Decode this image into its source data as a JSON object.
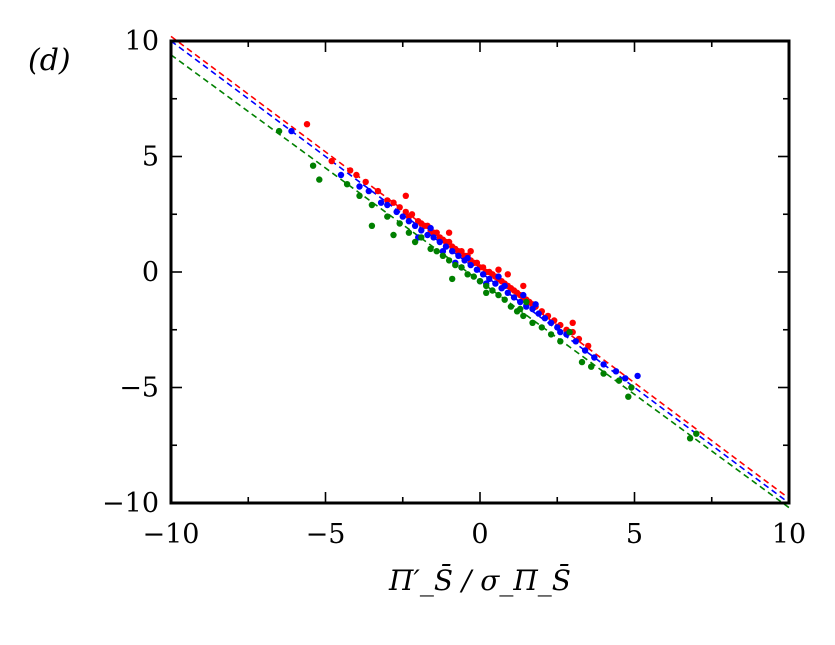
{
  "chart_data": {
    "type": "scatter",
    "panel_label": "(d)",
    "title": "",
    "xlabel": "Π′_S̄ / σ_Π_S̄",
    "ylabel": "",
    "xlim": [
      -10,
      10
    ],
    "ylim": [
      -10,
      10
    ],
    "xticks": [
      -10,
      -5,
      0,
      5,
      10
    ],
    "yticks": [
      -10,
      -5,
      0,
      5,
      10
    ],
    "xtick_labels": [
      "−10",
      "−5",
      "0",
      "5",
      "10"
    ],
    "ytick_labels": [
      "−10",
      "−5",
      "0",
      "5",
      "10"
    ],
    "grid": false,
    "legend": "none",
    "series": [
      {
        "color": "#ff0000",
        "fit_line": {
          "slope": -1.0,
          "intercept": 0.2
        },
        "points": [
          [
            -5.6,
            6.4
          ],
          [
            -4.8,
            4.8
          ],
          [
            -4.2,
            4.4
          ],
          [
            -4.0,
            4.2
          ],
          [
            -3.7,
            3.9
          ],
          [
            -3.3,
            3.5
          ],
          [
            -3.0,
            3.1
          ],
          [
            -2.8,
            3.0
          ],
          [
            -2.6,
            2.8
          ],
          [
            -2.4,
            2.6
          ],
          [
            -2.3,
            2.4
          ],
          [
            -2.2,
            2.5
          ],
          [
            -2.0,
            2.2
          ],
          [
            -1.9,
            2.1
          ],
          [
            -1.8,
            2.0
          ],
          [
            -1.7,
            2.0
          ],
          [
            -1.6,
            1.8
          ],
          [
            -1.5,
            1.7
          ],
          [
            -1.4,
            1.7
          ],
          [
            -1.3,
            1.5
          ],
          [
            -1.2,
            1.4
          ],
          [
            -1.1,
            1.3
          ],
          [
            -1.0,
            1.3
          ],
          [
            -0.9,
            1.1
          ],
          [
            -0.8,
            1.0
          ],
          [
            -0.7,
            0.9
          ],
          [
            -0.6,
            0.9
          ],
          [
            -0.5,
            0.7
          ],
          [
            -0.4,
            0.7
          ],
          [
            -0.3,
            0.5
          ],
          [
            -0.2,
            0.4
          ],
          [
            -0.1,
            0.4
          ],
          [
            0.0,
            0.2
          ],
          [
            0.1,
            0.2
          ],
          [
            0.2,
            0.0
          ],
          [
            0.3,
            0.0
          ],
          [
            0.4,
            -0.1
          ],
          [
            0.5,
            -0.2
          ],
          [
            0.6,
            -0.3
          ],
          [
            0.7,
            -0.4
          ],
          [
            0.8,
            -0.5
          ],
          [
            0.9,
            -0.6
          ],
          [
            1.0,
            -0.7
          ],
          [
            1.1,
            -0.8
          ],
          [
            1.2,
            -0.9
          ],
          [
            1.3,
            -1.0
          ],
          [
            1.4,
            -1.1
          ],
          [
            1.5,
            -1.2
          ],
          [
            1.6,
            -1.3
          ],
          [
            1.7,
            -1.4
          ],
          [
            1.8,
            -1.5
          ],
          [
            2.0,
            -1.7
          ],
          [
            2.2,
            -1.9
          ],
          [
            2.4,
            -2.1
          ],
          [
            2.6,
            -2.3
          ],
          [
            2.8,
            -2.5
          ],
          [
            3.0,
            -2.6
          ],
          [
            3.2,
            -2.9
          ],
          [
            3.5,
            -3.2
          ],
          [
            3.0,
            -2.2
          ],
          [
            -0.3,
            0.9
          ],
          [
            0.6,
            0.1
          ],
          [
            -1.0,
            1.7
          ],
          [
            1.4,
            -0.6
          ],
          [
            -2.4,
            3.3
          ],
          [
            0.9,
            -0.1
          ]
        ]
      },
      {
        "color": "#0000ff",
        "fit_line": {
          "slope": -1.0,
          "intercept": 0.0
        },
        "points": [
          [
            -6.1,
            6.1
          ],
          [
            -4.5,
            4.2
          ],
          [
            -3.9,
            3.7
          ],
          [
            -3.6,
            3.5
          ],
          [
            -3.2,
            3.0
          ],
          [
            -3.0,
            2.9
          ],
          [
            -2.7,
            2.6
          ],
          [
            -2.5,
            2.4
          ],
          [
            -2.3,
            2.2
          ],
          [
            -2.1,
            2.0
          ],
          [
            -1.9,
            1.8
          ],
          [
            -1.7,
            1.6
          ],
          [
            -1.5,
            1.5
          ],
          [
            -1.3,
            1.3
          ],
          [
            -1.1,
            1.1
          ],
          [
            -0.9,
            0.9
          ],
          [
            -0.7,
            0.7
          ],
          [
            -0.5,
            0.5
          ],
          [
            -0.3,
            0.3
          ],
          [
            -0.1,
            0.1
          ],
          [
            0.1,
            -0.1
          ],
          [
            0.3,
            -0.3
          ],
          [
            0.5,
            -0.5
          ],
          [
            0.7,
            -0.7
          ],
          [
            0.9,
            -0.9
          ],
          [
            1.1,
            -1.1
          ],
          [
            1.3,
            -1.3
          ],
          [
            1.5,
            -1.5
          ],
          [
            1.7,
            -1.6
          ],
          [
            1.9,
            -1.8
          ],
          [
            2.1,
            -2.0
          ],
          [
            2.3,
            -2.2
          ],
          [
            2.5,
            -2.4
          ],
          [
            2.8,
            -2.7
          ],
          [
            3.1,
            -3.0
          ],
          [
            3.4,
            -3.4
          ],
          [
            3.7,
            -3.7
          ],
          [
            4.0,
            -4.0
          ],
          [
            4.4,
            -4.3
          ],
          [
            4.7,
            -4.6
          ],
          [
            5.1,
            -4.5
          ],
          [
            -1.2,
            0.9
          ],
          [
            -0.6,
            0.2
          ],
          [
            0.2,
            -0.5
          ],
          [
            0.8,
            -0.6
          ],
          [
            1.4,
            -1.0
          ],
          [
            -2.0,
            1.5
          ],
          [
            -0.4,
            0.6
          ],
          [
            0.6,
            -0.2
          ],
          [
            1.8,
            -1.4
          ],
          [
            -1.6,
            1.9
          ],
          [
            2.6,
            -2.6
          ],
          [
            -0.8,
            0.4
          ],
          [
            0.0,
            -0.4
          ]
        ]
      },
      {
        "color": "#008000",
        "fit_line": {
          "slope": -0.98,
          "intercept": -0.4
        },
        "points": [
          [
            -6.5,
            6.1
          ],
          [
            -5.4,
            4.6
          ],
          [
            -5.2,
            4.0
          ],
          [
            -4.3,
            3.8
          ],
          [
            -3.9,
            3.3
          ],
          [
            -3.5,
            2.9
          ],
          [
            -3.0,
            2.4
          ],
          [
            -3.5,
            2.0
          ],
          [
            -2.6,
            2.1
          ],
          [
            -2.3,
            1.7
          ],
          [
            -2.1,
            1.3
          ],
          [
            -1.9,
            1.5
          ],
          [
            -1.6,
            1.0
          ],
          [
            -1.4,
            0.9
          ],
          [
            -1.2,
            0.7
          ],
          [
            -1.0,
            0.5
          ],
          [
            -0.8,
            0.3
          ],
          [
            -0.6,
            0.2
          ],
          [
            -0.4,
            -0.1
          ],
          [
            -0.2,
            -0.2
          ],
          [
            0.0,
            -0.4
          ],
          [
            0.2,
            -0.6
          ],
          [
            0.4,
            -0.8
          ],
          [
            0.6,
            -1.0
          ],
          [
            0.8,
            -1.2
          ],
          [
            1.0,
            -1.5
          ],
          [
            1.2,
            -1.7
          ],
          [
            1.4,
            -1.9
          ],
          [
            1.7,
            -2.2
          ],
          [
            2.0,
            -2.4
          ],
          [
            1.5,
            -1.3
          ],
          [
            2.3,
            -2.7
          ],
          [
            2.6,
            -3.0
          ],
          [
            2.9,
            -2.6
          ],
          [
            3.3,
            -3.9
          ],
          [
            3.6,
            -4.1
          ],
          [
            4.0,
            -4.4
          ],
          [
            4.5,
            -4.7
          ],
          [
            4.8,
            -5.4
          ],
          [
            4.9,
            -5.0
          ],
          [
            6.8,
            -7.2
          ],
          [
            7.0,
            -7.0
          ],
          [
            -0.9,
            -0.3
          ],
          [
            0.2,
            -0.9
          ],
          [
            1.3,
            -1.6
          ],
          [
            -2.8,
            1.6
          ]
        ]
      }
    ]
  }
}
